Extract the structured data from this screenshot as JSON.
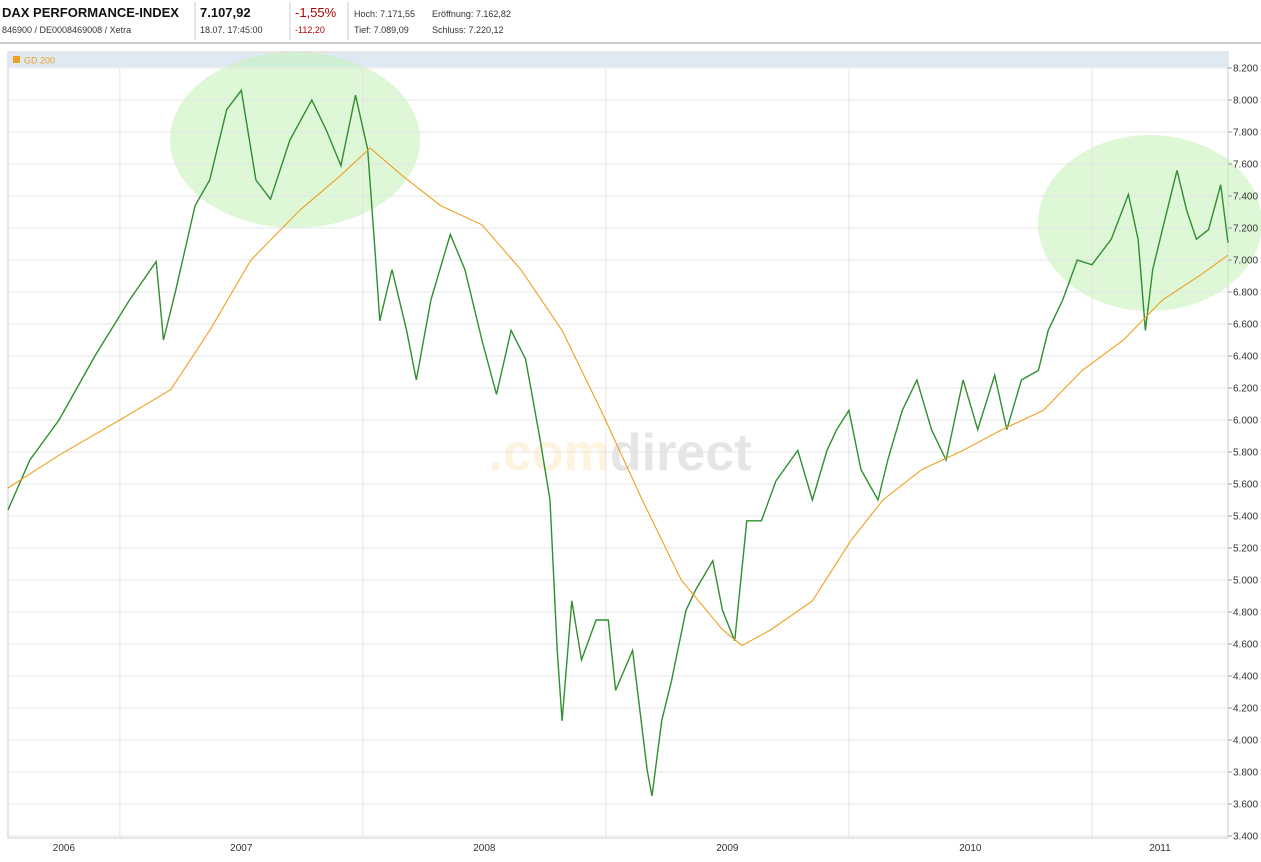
{
  "header": {
    "title": "DAX PERFORMANCE-INDEX",
    "subtitle": "846900 / DE0008469008 / Xetra",
    "price": "7.107,92",
    "time": "18.07. 17:45:00",
    "change_pct": "-1,55%",
    "change_abs": "-112,20",
    "high": "Hoch: 7.171,55",
    "open": "Eröffnung: 7.162,82",
    "low": "Tief: 7.089,09",
    "close": "Schluss: 7.220,12"
  },
  "chart_data": {
    "type": "line",
    "watermark": [
      ".com",
      "direct"
    ],
    "xlim": [
      2006.54,
      2011.56
    ],
    "ylim": [
      3400,
      8200
    ],
    "x_grid": [
      2007,
      2008,
      2009,
      2010,
      2011
    ],
    "xticks": [
      {
        "value": 2006.77,
        "label": "2006"
      },
      {
        "value": 2007.5,
        "label": "2007"
      },
      {
        "value": 2008.5,
        "label": "2008"
      },
      {
        "value": 2009.5,
        "label": "2009"
      },
      {
        "value": 2010.5,
        "label": "2010"
      },
      {
        "value": 2011.28,
        "label": "2011"
      }
    ],
    "yticks": [
      {
        "value": 3400,
        "label": "3.400"
      },
      {
        "value": 3600,
        "label": "3.600"
      },
      {
        "value": 3800,
        "label": "3.800"
      },
      {
        "value": 4000,
        "label": "4.000"
      },
      {
        "value": 4200,
        "label": "4.200"
      },
      {
        "value": 4400,
        "label": "4.400"
      },
      {
        "value": 4600,
        "label": "4.600"
      },
      {
        "value": 4800,
        "label": "4.800"
      },
      {
        "value": 5000,
        "label": "5.000"
      },
      {
        "value": 5200,
        "label": "5.200"
      },
      {
        "value": 5400,
        "label": "5.400"
      },
      {
        "value": 5600,
        "label": "5.600"
      },
      {
        "value": 5800,
        "label": "5.800"
      },
      {
        "value": 6000,
        "label": "6.000"
      },
      {
        "value": 6200,
        "label": "6.200"
      },
      {
        "value": 6400,
        "label": "6.400"
      },
      {
        "value": 6600,
        "label": "6.600"
      },
      {
        "value": 6800,
        "label": "6.800"
      },
      {
        "value": 7000,
        "label": "7.000"
      },
      {
        "value": 7200,
        "label": "7.200"
      },
      {
        "value": 7400,
        "label": "7.400"
      },
      {
        "value": 7600,
        "label": "7.600"
      },
      {
        "value": 7800,
        "label": "7.800"
      },
      {
        "value": 8000,
        "label": "8.000"
      },
      {
        "value": 8200,
        "label": "8.200"
      }
    ],
    "grid": true,
    "series": [
      {
        "color": "#2f8f2f",
        "x": [
          2006.54,
          2006.63,
          2006.75,
          2006.9,
          2007.04,
          2007.15,
          2007.18,
          2007.23,
          2007.31,
          2007.37,
          2007.44,
          2007.5,
          2007.56,
          2007.62,
          2007.7,
          2007.79,
          2007.85,
          2007.91,
          2007.97,
          2008.02,
          2008.05,
          2008.07,
          2008.12,
          2008.18,
          2008.22,
          2008.28,
          2008.36,
          2008.42,
          2008.49,
          2008.55,
          2008.61,
          2008.67,
          2008.73,
          2008.77,
          2008.8,
          2008.82,
          2008.86,
          2008.9,
          2008.96,
          2009.01,
          2009.04,
          2009.11,
          2009.17,
          2009.19,
          2009.23,
          2009.27,
          2009.33,
          2009.37,
          2009.44,
          2009.48,
          2009.53,
          2009.58,
          2009.64,
          2009.7,
          2009.79,
          2009.85,
          2009.91,
          2009.95,
          2010.0,
          2010.05,
          2010.12,
          2010.16,
          2010.22,
          2010.28,
          2010.34,
          2010.4,
          2010.47,
          2010.53,
          2010.6,
          2010.65,
          2010.71,
          2010.78,
          2010.82,
          2010.88,
          2010.94,
          2011.0,
          2011.08,
          2011.15,
          2011.19,
          2011.22,
          2011.25,
          2011.29,
          2011.35,
          2011.39,
          2011.43,
          2011.48,
          2011.53,
          2011.56
        ],
        "values": [
          5438,
          5750,
          6000,
          6406,
          6750,
          6990,
          6500,
          6810,
          7340,
          7500,
          7940,
          8060,
          7500,
          7380,
          7750,
          8000,
          7810,
          7590,
          8030,
          7690,
          7060,
          6620,
          6940,
          6560,
          6250,
          6750,
          7160,
          6940,
          6500,
          6160,
          6560,
          6380,
          5875,
          5500,
          4560,
          4120,
          4870,
          4500,
          4750,
          4750,
          4310,
          4560,
          3810,
          3650,
          4120,
          4370,
          4810,
          4940,
          5120,
          4810,
          4620,
          5370,
          5370,
          5620,
          5810,
          5500,
          5810,
          5940,
          6060,
          5690,
          5500,
          5750,
          6060,
          6250,
          5940,
          5750,
          6250,
          5940,
          6280,
          5940,
          6250,
          6310,
          6560,
          6750,
          7000,
          6970,
          7130,
          7410,
          7130,
          6560,
          6940,
          7190,
          7560,
          7310,
          7130,
          7190,
          7470,
          7108
        ]
      },
      {
        "name": "GD 200",
        "color": "#f0a020",
        "x": [
          2006.54,
          2006.75,
          2007.0,
          2007.21,
          2007.37,
          2007.54,
          2007.74,
          2007.91,
          2008.03,
          2008.16,
          2008.32,
          2008.49,
          2008.65,
          2008.82,
          2008.98,
          2009.15,
          2009.31,
          2009.48,
          2009.56,
          2009.68,
          2009.85,
          2010.01,
          2010.14,
          2010.3,
          2010.47,
          2010.63,
          2010.8,
          2010.96,
          2011.13,
          2011.29,
          2011.45,
          2011.56
        ],
        "values": [
          5575,
          5780,
          6000,
          6190,
          6560,
          7000,
          7310,
          7530,
          7700,
          7530,
          7340,
          7220,
          6940,
          6560,
          6060,
          5500,
          5000,
          4690,
          4590,
          4690,
          4870,
          5250,
          5500,
          5690,
          5810,
          5940,
          6060,
          6310,
          6500,
          6750,
          6910,
          7030
        ]
      }
    ]
  }
}
